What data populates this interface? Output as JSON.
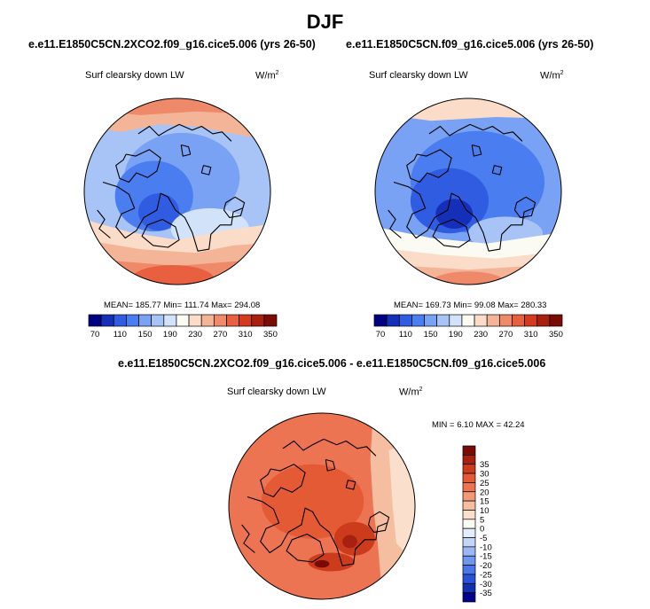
{
  "main_title": "DJF",
  "colors": {
    "coastline": "#000000",
    "abs_palette": [
      "#000080",
      "#1530b8",
      "#2f5ce0",
      "#4a7ef0",
      "#7aa2f4",
      "#a8c4f6",
      "#d2e2f8",
      "#fbfbf3",
      "#fadcc8",
      "#f4b497",
      "#ee8a6a",
      "#e86040",
      "#d43a1e",
      "#a8200e",
      "#7a0c06"
    ],
    "diff_palette": [
      "#00008b",
      "#1030b0",
      "#2a52d8",
      "#4a76ea",
      "#7196f0",
      "#9cb8f4",
      "#c4d6f8",
      "#e4eefa",
      "#fbfbf3",
      "#fae0cc",
      "#f6bea0",
      "#f29a78",
      "#ec7452",
      "#e45a34",
      "#cc3c1c",
      "#a82010",
      "#7a0a04"
    ]
  },
  "chart_data": [
    {
      "type": "heatmap",
      "projection": "polar-stereographic-north",
      "title": "e.e11.E1850C5CN.2XCO2.f09_g16.cice5.006 (yrs 26-50)",
      "variable": "Surf clearsky down LW",
      "units_base": "W/m",
      "units_exp": "2",
      "stats_text": "MEAN= 185.77  Min= 111.74  Max= 294.08",
      "mean": 185.77,
      "min": 111.74,
      "max": 294.08,
      "colorbar_orientation": "horizontal",
      "colorbar_levels": [
        70,
        90,
        110,
        130,
        150,
        170,
        190,
        210,
        230,
        250,
        270,
        290,
        310,
        330,
        350
      ],
      "colorbar_labels": [
        "70",
        "110",
        "150",
        "190",
        "230",
        "270",
        "310",
        "350"
      ]
    },
    {
      "type": "heatmap",
      "projection": "polar-stereographic-north",
      "title": "e.e11.E1850C5CN.f09_g16.cice5.006 (yrs 26-50)",
      "variable": "Surf clearsky down LW",
      "units_base": "W/m",
      "units_exp": "2",
      "stats_text": "MEAN= 169.73  Min= 99.08  Max= 280.33",
      "mean": 169.73,
      "min": 99.08,
      "max": 280.33,
      "colorbar_orientation": "horizontal",
      "colorbar_levels": [
        70,
        90,
        110,
        130,
        150,
        170,
        190,
        210,
        230,
        250,
        270,
        290,
        310,
        330,
        350
      ],
      "colorbar_labels": [
        "70",
        "110",
        "150",
        "190",
        "230",
        "270",
        "310",
        "350"
      ]
    },
    {
      "type": "heatmap",
      "projection": "polar-stereographic-north",
      "title": "e.e11.E1850C5CN.2XCO2.f09_g16.cice5.006 - e.e11.E1850C5CN.f09_g16.cice5.006",
      "variable": "Surf clearsky down LW",
      "units_base": "W/m",
      "units_exp": "2",
      "stats_text": "MIN =  6.10 MAX =  42.24",
      "min": 6.1,
      "max": 42.24,
      "colorbar_orientation": "vertical",
      "colorbar_levels": [
        -40,
        -35,
        -30,
        -25,
        -20,
        -15,
        -10,
        -5,
        0,
        5,
        10,
        15,
        20,
        25,
        30,
        35,
        40
      ],
      "colorbar_labels": [
        "35",
        "30",
        "25",
        "20",
        "15",
        "10",
        "5",
        "0",
        "-5",
        "-10",
        "-15",
        "-20",
        "-25",
        "-30",
        "-35"
      ]
    }
  ]
}
